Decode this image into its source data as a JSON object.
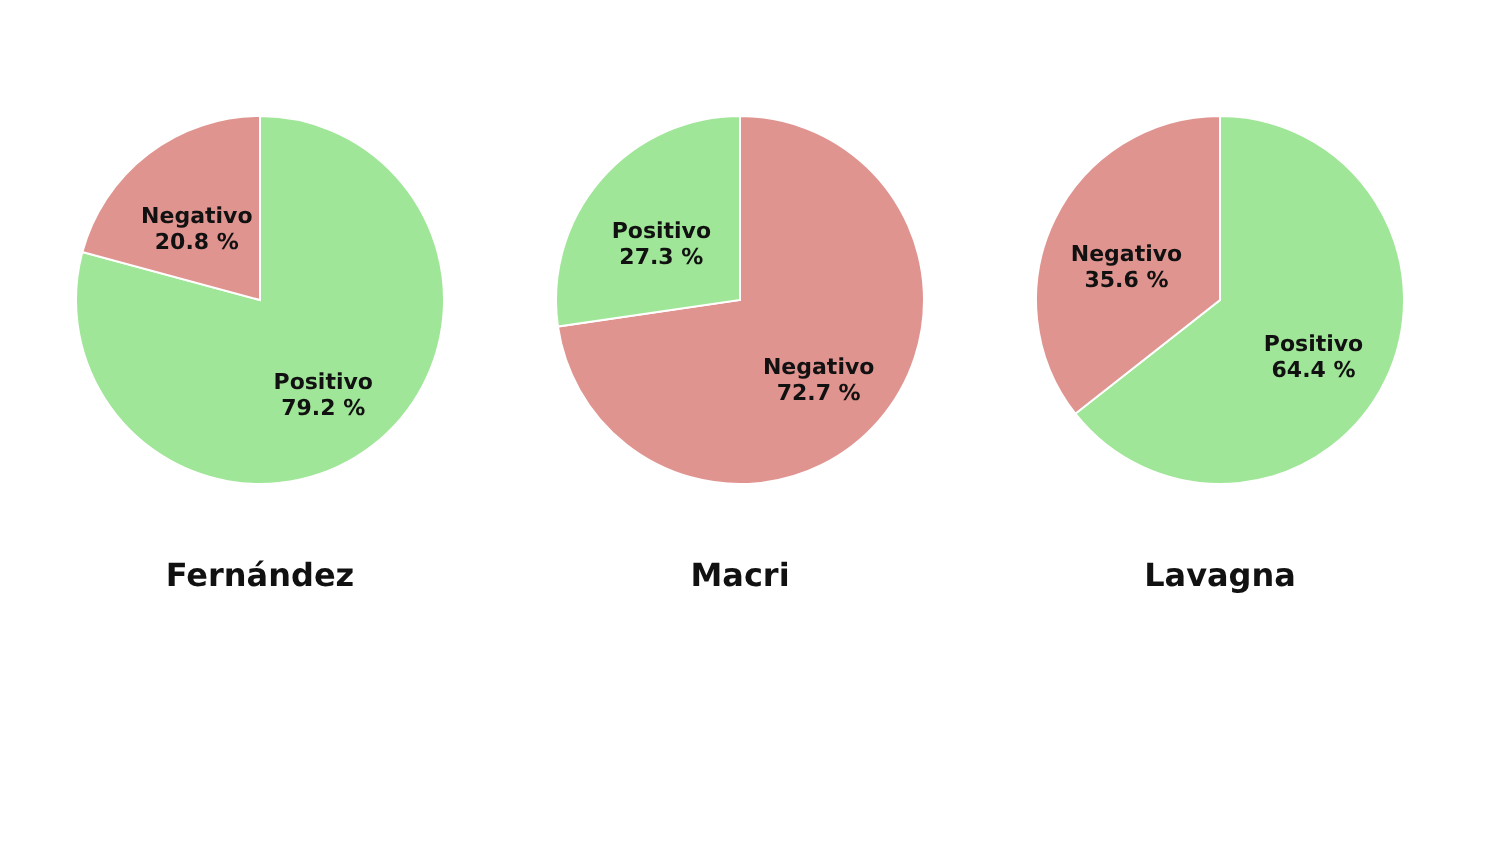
{
  "chart_data": [
    {
      "type": "pie",
      "title": "Fernández",
      "categories": [
        "Positivo",
        "Negativo"
      ],
      "values": [
        79.2,
        20.8
      ],
      "colors": [
        "#a0e698",
        "#e09490"
      ],
      "value_labels": [
        "79.2 %",
        "20.8 %"
      ]
    },
    {
      "type": "pie",
      "title": "Macri",
      "categories": [
        "Negativo",
        "Positivo"
      ],
      "values": [
        72.7,
        27.3
      ],
      "colors": [
        "#e09490",
        "#a0e698"
      ],
      "value_labels": [
        "72.7 %",
        "27.3 %"
      ]
    },
    {
      "type": "pie",
      "title": "Lavagna",
      "categories": [
        "Positivo",
        "Negativo"
      ],
      "values": [
        64.4,
        35.6
      ],
      "colors": [
        "#a0e698",
        "#e09490"
      ],
      "value_labels": [
        "64.4 %",
        "35.6 %"
      ]
    }
  ]
}
